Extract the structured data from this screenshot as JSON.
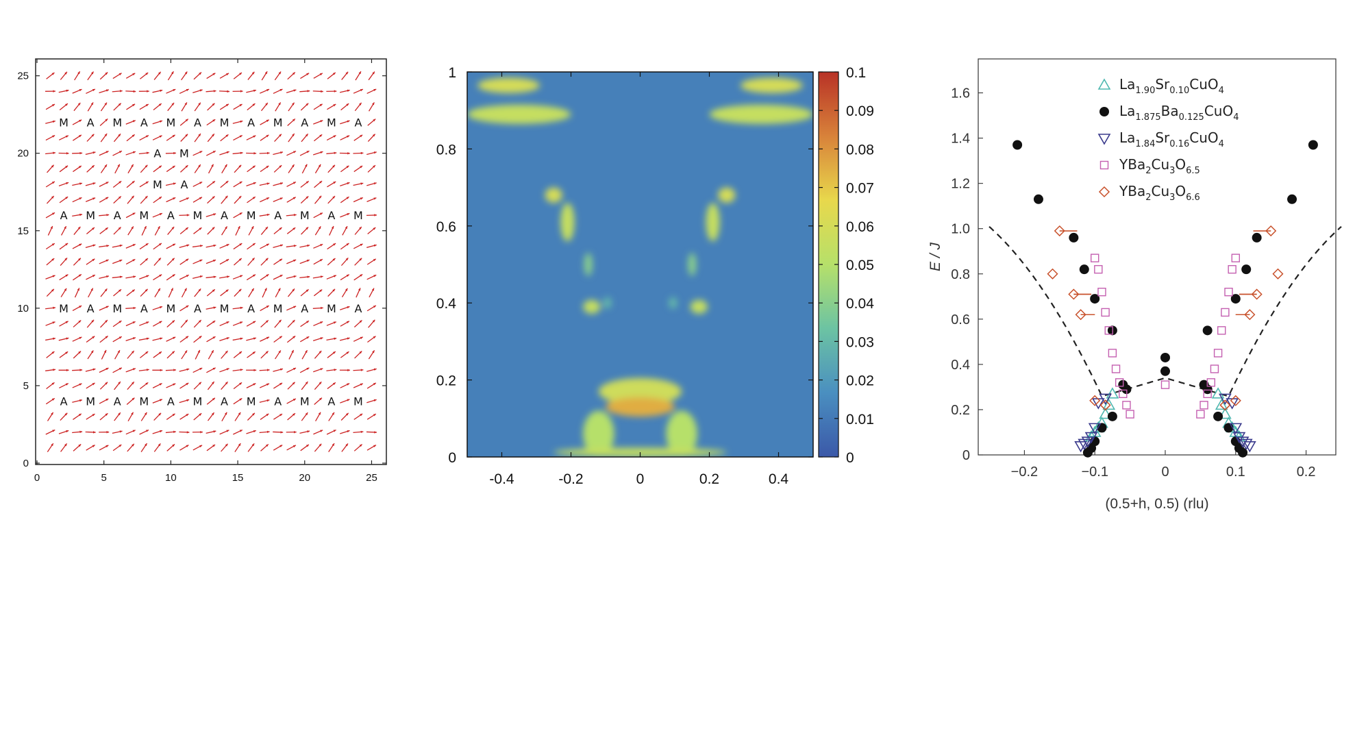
{
  "chart_data": [
    {
      "type": "vector-field",
      "xlabel": "",
      "ylabel": "",
      "xlim": [
        0,
        26
      ],
      "ylim": [
        0,
        26
      ],
      "x_ticks": [
        "0",
        "5",
        "10",
        "15",
        "20",
        "25"
      ],
      "y_ticks": [
        "0",
        "5",
        "10",
        "15",
        "20",
        "25"
      ],
      "arrow_color": "#cc2222",
      "annotations": [
        {
          "x": 2,
          "y": 22,
          "text": "M"
        },
        {
          "x": 4,
          "y": 22,
          "text": "A"
        },
        {
          "x": 6,
          "y": 22,
          "text": "M"
        },
        {
          "x": 8,
          "y": 22,
          "text": "A"
        },
        {
          "x": 10,
          "y": 22,
          "text": "M"
        },
        {
          "x": 12,
          "y": 22,
          "text": "A"
        },
        {
          "x": 14,
          "y": 22,
          "text": "M"
        },
        {
          "x": 16,
          "y": 22,
          "text": "A"
        },
        {
          "x": 18,
          "y": 22,
          "text": "M"
        },
        {
          "x": 20,
          "y": 22,
          "text": "A"
        },
        {
          "x": 22,
          "y": 22,
          "text": "M"
        },
        {
          "x": 24,
          "y": 22,
          "text": "A"
        },
        {
          "x": 9,
          "y": 20,
          "text": "A"
        },
        {
          "x": 11,
          "y": 20,
          "text": "M"
        },
        {
          "x": 9,
          "y": 18,
          "text": "M"
        },
        {
          "x": 11,
          "y": 18,
          "text": "A"
        },
        {
          "x": 2,
          "y": 16,
          "text": "A"
        },
        {
          "x": 4,
          "y": 16,
          "text": "M"
        },
        {
          "x": 6,
          "y": 16,
          "text": "A"
        },
        {
          "x": 8,
          "y": 16,
          "text": "M"
        },
        {
          "x": 10,
          "y": 16,
          "text": "A"
        },
        {
          "x": 12,
          "y": 16,
          "text": "M"
        },
        {
          "x": 14,
          "y": 16,
          "text": "A"
        },
        {
          "x": 16,
          "y": 16,
          "text": "M"
        },
        {
          "x": 18,
          "y": 16,
          "text": "A"
        },
        {
          "x": 20,
          "y": 16,
          "text": "M"
        },
        {
          "x": 22,
          "y": 16,
          "text": "A"
        },
        {
          "x": 24,
          "y": 16,
          "text": "M"
        },
        {
          "x": 2,
          "y": 10,
          "text": "M"
        },
        {
          "x": 4,
          "y": 10,
          "text": "A"
        },
        {
          "x": 6,
          "y": 10,
          "text": "M"
        },
        {
          "x": 8,
          "y": 10,
          "text": "A"
        },
        {
          "x": 10,
          "y": 10,
          "text": "M"
        },
        {
          "x": 12,
          "y": 10,
          "text": "A"
        },
        {
          "x": 14,
          "y": 10,
          "text": "M"
        },
        {
          "x": 16,
          "y": 10,
          "text": "A"
        },
        {
          "x": 18,
          "y": 10,
          "text": "M"
        },
        {
          "x": 20,
          "y": 10,
          "text": "A"
        },
        {
          "x": 22,
          "y": 10,
          "text": "M"
        },
        {
          "x": 24,
          "y": 10,
          "text": "A"
        },
        {
          "x": 2,
          "y": 4,
          "text": "A"
        },
        {
          "x": 4,
          "y": 4,
          "text": "M"
        },
        {
          "x": 6,
          "y": 4,
          "text": "A"
        },
        {
          "x": 8,
          "y": 4,
          "text": "M"
        },
        {
          "x": 10,
          "y": 4,
          "text": "A"
        },
        {
          "x": 12,
          "y": 4,
          "text": "M"
        },
        {
          "x": 14,
          "y": 4,
          "text": "A"
        },
        {
          "x": 16,
          "y": 4,
          "text": "M"
        },
        {
          "x": 18,
          "y": 4,
          "text": "A"
        },
        {
          "x": 20,
          "y": 4,
          "text": "M"
        },
        {
          "x": 22,
          "y": 4,
          "text": "A"
        },
        {
          "x": 24,
          "y": 4,
          "text": "M"
        }
      ]
    },
    {
      "type": "heatmap",
      "xlabel": "",
      "ylabel": "",
      "xlim": [
        -0.5,
        0.5
      ],
      "ylim": [
        0,
        1
      ],
      "x_ticks": [
        "-0.4",
        "-0.2",
        "0",
        "0.2",
        "0.4"
      ],
      "y_ticks": [
        "0",
        "0.2",
        "0.4",
        "0.6",
        "0.8",
        "1"
      ],
      "colorbar": {
        "range": [
          0,
          0.1
        ],
        "ticks": [
          "0",
          "0.01",
          "0.02",
          "0.03",
          "0.04",
          "0.05",
          "0.06",
          "0.07",
          "0.08",
          "0.09",
          "0.1"
        ],
        "colors": [
          "#3b58a8",
          "#4a8fc0",
          "#6cc3a3",
          "#b6e06a",
          "#e8d84c",
          "#d8823a",
          "#b83226"
        ]
      },
      "background_value": 0.012,
      "features": [
        {
          "x": -0.38,
          "y": 0.965,
          "width": 0.09,
          "height": 0.02,
          "value": 0.06
        },
        {
          "x": -0.35,
          "y": 0.89,
          "width": 0.15,
          "height": 0.025,
          "value": 0.055
        },
        {
          "x": 0.38,
          "y": 0.965,
          "width": 0.09,
          "height": 0.02,
          "value": 0.06
        },
        {
          "x": 0.35,
          "y": 0.89,
          "width": 0.15,
          "height": 0.025,
          "value": 0.055
        },
        {
          "x": -0.25,
          "y": 0.68,
          "width": 0.025,
          "height": 0.02,
          "value": 0.06
        },
        {
          "x": -0.21,
          "y": 0.61,
          "width": 0.02,
          "height": 0.05,
          "value": 0.055
        },
        {
          "x": -0.15,
          "y": 0.5,
          "width": 0.012,
          "height": 0.03,
          "value": 0.04
        },
        {
          "x": -0.14,
          "y": 0.39,
          "width": 0.025,
          "height": 0.018,
          "value": 0.055
        },
        {
          "x": -0.095,
          "y": 0.4,
          "width": 0.012,
          "height": 0.015,
          "value": 0.03
        },
        {
          "x": 0.25,
          "y": 0.68,
          "width": 0.025,
          "height": 0.02,
          "value": 0.06
        },
        {
          "x": 0.21,
          "y": 0.61,
          "width": 0.02,
          "height": 0.05,
          "value": 0.055
        },
        {
          "x": 0.15,
          "y": 0.5,
          "width": 0.012,
          "height": 0.03,
          "value": 0.04
        },
        {
          "x": 0.17,
          "y": 0.39,
          "width": 0.025,
          "height": 0.018,
          "value": 0.055
        },
        {
          "x": 0.095,
          "y": 0.4,
          "width": 0.012,
          "height": 0.015,
          "value": 0.03
        },
        {
          "x": 0.0,
          "y": 0.17,
          "width": 0.12,
          "height": 0.035,
          "value": 0.058
        },
        {
          "x": -0.12,
          "y": 0.06,
          "width": 0.045,
          "height": 0.06,
          "value": 0.05
        },
        {
          "x": 0.12,
          "y": 0.06,
          "width": 0.045,
          "height": 0.06,
          "value": 0.05
        },
        {
          "x": 0.0,
          "y": 0.012,
          "width": 0.25,
          "height": 0.012,
          "value": 0.055
        },
        {
          "x": 0.0,
          "y": 0.13,
          "width": 0.075,
          "height": 0.012,
          "value": 0.1
        },
        {
          "x": 0.0,
          "y": 0.13,
          "width": 0.1,
          "height": 0.025,
          "value": 0.075
        }
      ]
    },
    {
      "type": "scatter",
      "xlabel": "(0.5+h, 0.5)  (rlu)",
      "ylabel": "E / J",
      "xlim": [
        -0.25,
        0.25
      ],
      "ylim": [
        0,
        1.75
      ],
      "x_ticks": [
        "−0.2",
        "−0.1",
        "0",
        "0.1",
        "0.2"
      ],
      "y_ticks": [
        "0",
        "0.2",
        "0.4",
        "0.6",
        "0.8",
        "1.0",
        "1.2",
        "1.4",
        "1.6"
      ],
      "legend_position": "top-center",
      "series": [
        {
          "marker": "triangle-up",
          "color": "#4fb8b0",
          "legend": {
            "base": "La",
            "s1": "1.90",
            "b2": "Sr",
            "s2": "0.10",
            "b3": "CuO",
            "s3": "4"
          },
          "x": [
            -0.075,
            -0.08,
            -0.085,
            -0.09,
            -0.095,
            -0.1,
            -0.105,
            0.075,
            0.08,
            0.085,
            0.09,
            0.095,
            0.1,
            0.105
          ],
          "y": [
            0.27,
            0.22,
            0.18,
            0.14,
            0.12,
            0.1,
            0.08,
            0.27,
            0.22,
            0.18,
            0.14,
            0.12,
            0.1,
            0.08
          ]
        },
        {
          "marker": "circle-filled",
          "color": "#111111",
          "legend": {
            "base": "La",
            "s1": "1.875",
            "b2": "Ba",
            "s2": "0.125",
            "b3": "CuO",
            "s3": "4"
          },
          "x": [
            -0.21,
            -0.18,
            -0.13,
            -0.115,
            -0.1,
            -0.075,
            -0.06,
            -0.055,
            -0.075,
            -0.09,
            -0.1,
            -0.105,
            -0.11,
            0.0,
            0.0,
            0.06,
            0.055,
            0.06,
            0.075,
            0.09,
            0.1,
            0.105,
            0.11,
            0.115,
            0.1,
            0.13,
            0.18,
            0.21
          ],
          "y": [
            1.37,
            1.13,
            0.96,
            0.82,
            0.69,
            0.55,
            0.31,
            0.29,
            0.17,
            0.12,
            0.06,
            0.03,
            0.01,
            0.43,
            0.37,
            0.55,
            0.31,
            0.29,
            0.17,
            0.12,
            0.06,
            0.03,
            0.01,
            0.82,
            0.69,
            0.96,
            1.13,
            1.37
          ]
        },
        {
          "marker": "triangle-down",
          "color": "#3a3a8c",
          "legend": {
            "base": "La",
            "s1": "1.84",
            "b2": "Sr",
            "s2": "0.16",
            "b3": "CuO",
            "s3": "4"
          },
          "x": [
            -0.085,
            -0.095,
            -0.1,
            -0.105,
            -0.11,
            -0.115,
            -0.12,
            0.085,
            0.095,
            0.1,
            0.105,
            0.11,
            0.115,
            0.12
          ],
          "y": [
            0.25,
            0.23,
            0.12,
            0.08,
            0.06,
            0.05,
            0.04,
            0.25,
            0.23,
            0.12,
            0.08,
            0.06,
            0.05,
            0.04
          ]
        },
        {
          "marker": "square-open",
          "color": "#c45fb0",
          "legend": {
            "base": "YBa",
            "s1": "2",
            "b2": "Cu",
            "s2": "3",
            "b3": "O",
            "s3": "6.5"
          },
          "x": [
            -0.1,
            -0.095,
            -0.09,
            -0.085,
            -0.08,
            -0.075,
            -0.07,
            -0.065,
            -0.06,
            -0.055,
            -0.05,
            0.0,
            0.1,
            0.095,
            0.09,
            0.085,
            0.08,
            0.075,
            0.07,
            0.065,
            0.06,
            0.055,
            0.05
          ],
          "y": [
            0.87,
            0.82,
            0.72,
            0.63,
            0.55,
            0.45,
            0.38,
            0.32,
            0.27,
            0.22,
            0.18,
            0.31,
            0.87,
            0.82,
            0.72,
            0.63,
            0.55,
            0.45,
            0.38,
            0.32,
            0.27,
            0.22,
            0.18
          ]
        },
        {
          "marker": "diamond-open",
          "color": "#c8502a",
          "legend": {
            "base": "YBa",
            "s1": "2",
            "b2": "Cu",
            "s2": "3",
            "b3": "O",
            "s3": "6.6"
          },
          "x": [
            -0.15,
            -0.16,
            -0.13,
            -0.12,
            -0.1,
            -0.085,
            0.15,
            0.16,
            0.13,
            0.12,
            0.1,
            0.085
          ],
          "y": [
            0.99,
            0.8,
            0.71,
            0.62,
            0.24,
            0.22,
            0.99,
            0.8,
            0.71,
            0.62,
            0.24,
            0.22
          ],
          "xerr": [
            0.025,
            0.0,
            0.025,
            0.02,
            0.0,
            0.0,
            0.025,
            0.0,
            0.025,
            0.02,
            0.0,
            0.0
          ]
        }
      ],
      "fit_curve": {
        "style": "dashed",
        "color": "#222222"
      }
    }
  ]
}
